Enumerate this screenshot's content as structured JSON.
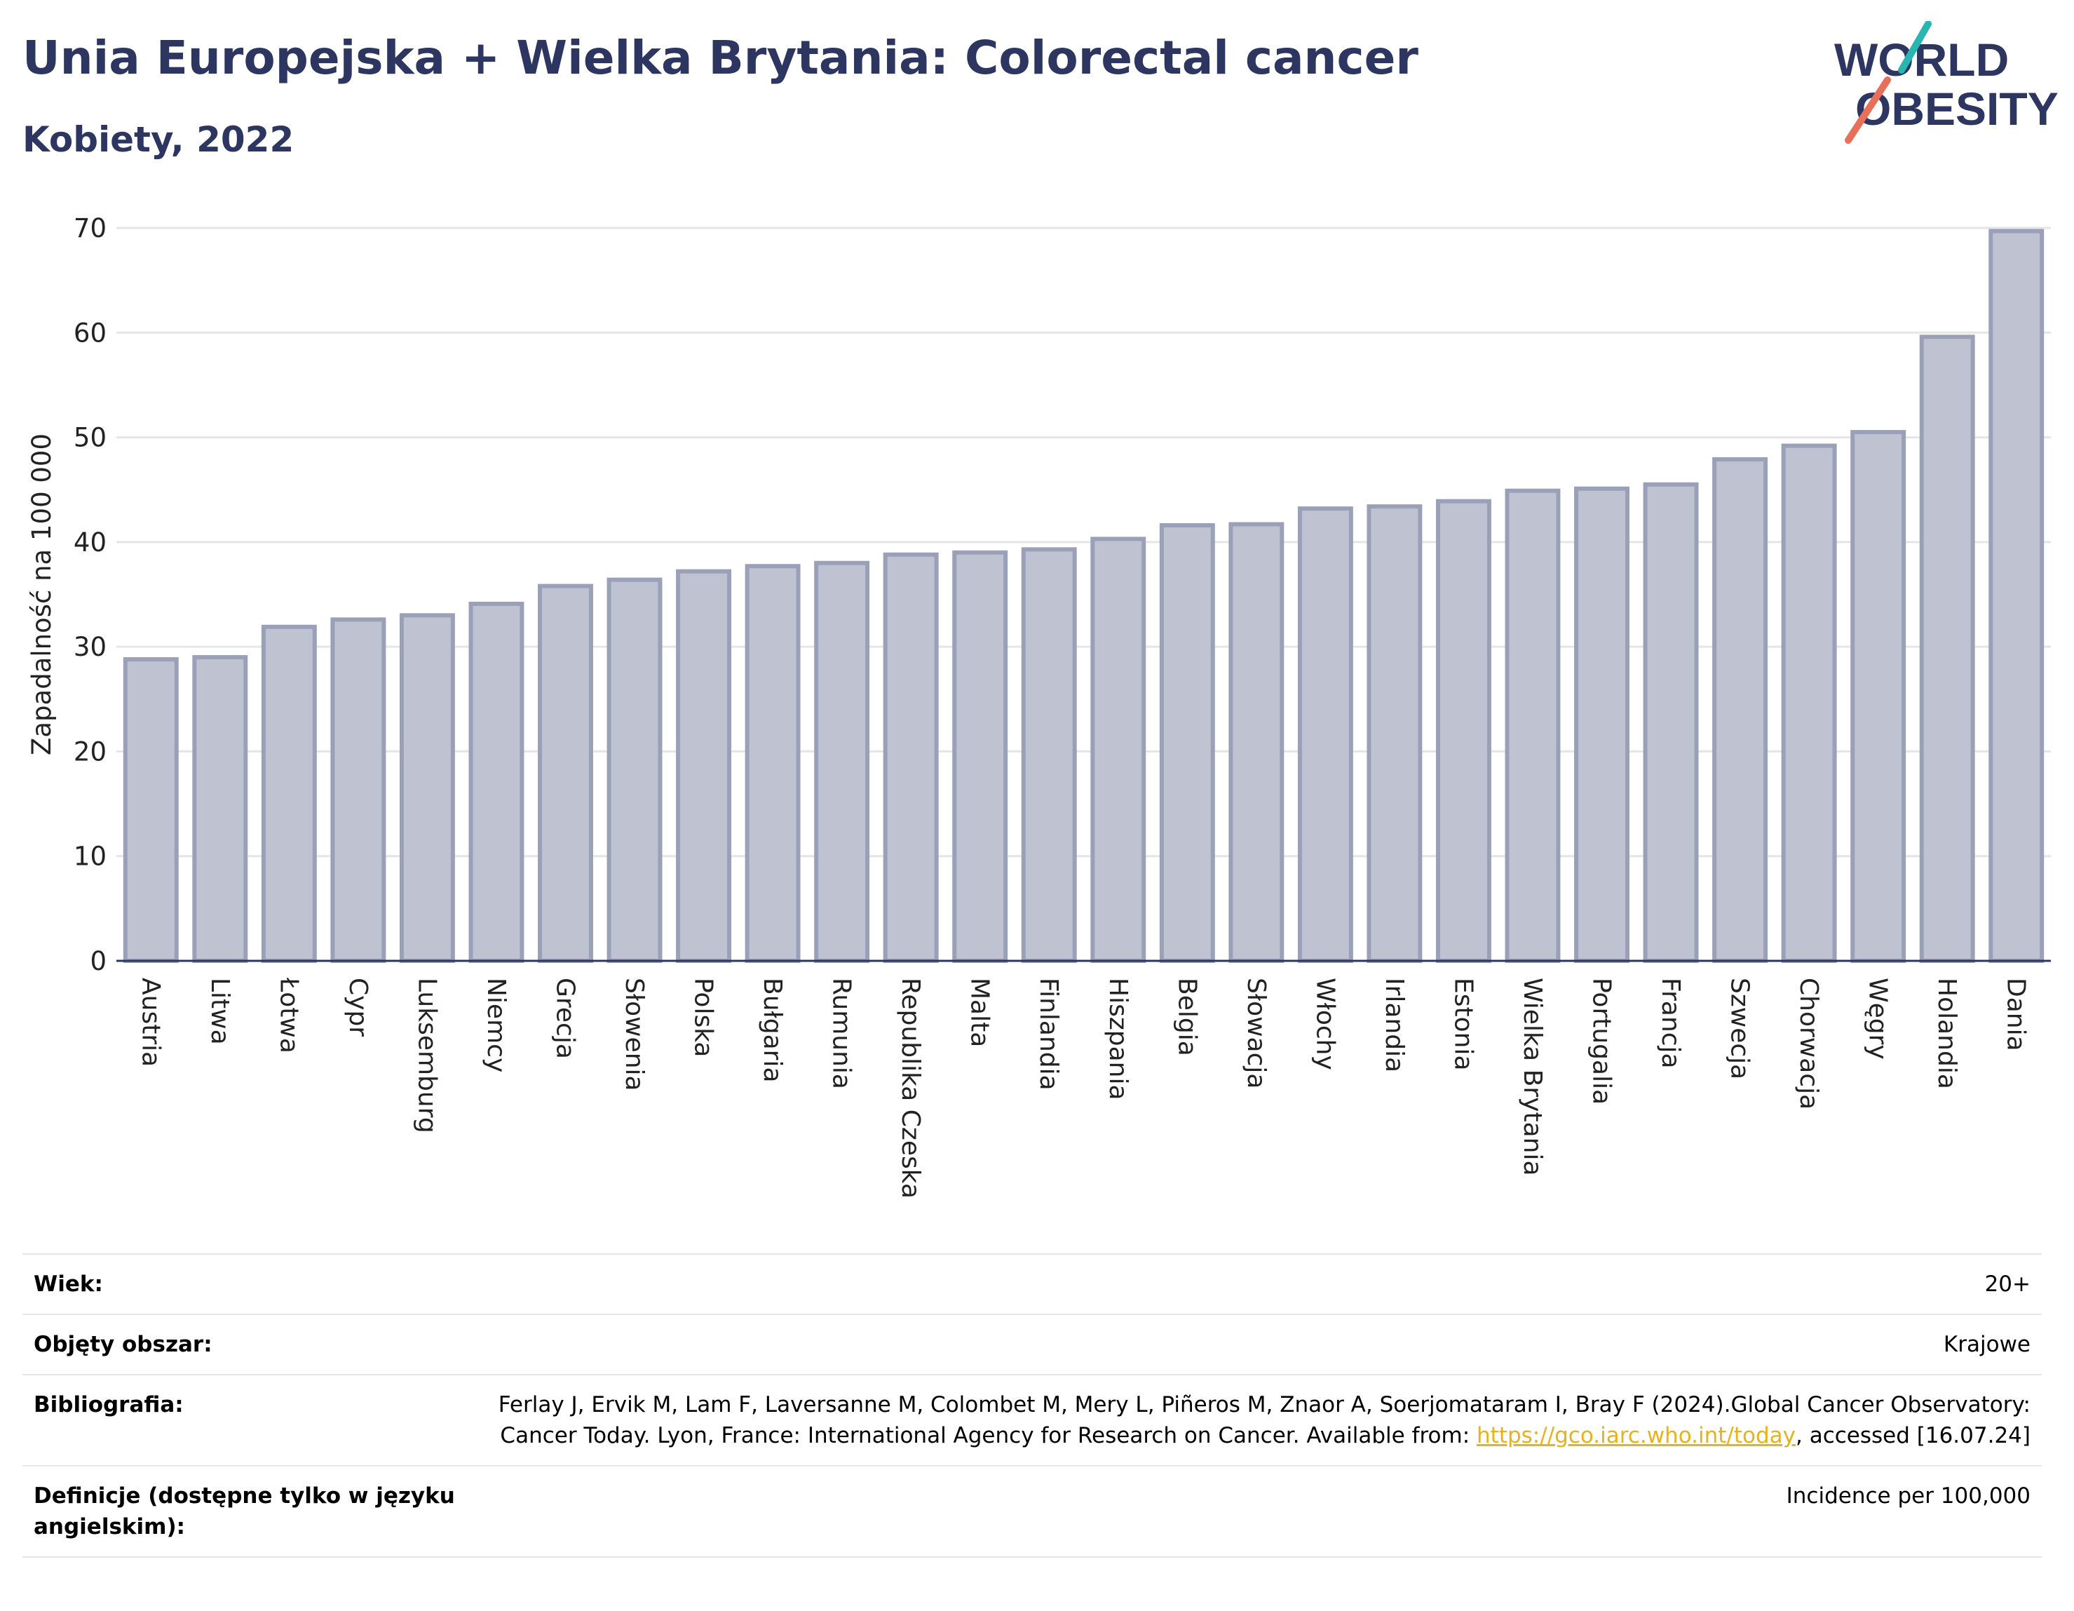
{
  "header": {
    "title": "Unia Europejska + Wielka Brytania: Colorectal cancer",
    "subtitle": "Kobiety, 2022"
  },
  "logo": {
    "line1": "WORLD",
    "line2": "OBESITY",
    "accent_teal": "#2bb5b1",
    "accent_red": "#e8705a"
  },
  "chart_data": {
    "type": "bar",
    "ylabel": "Zapadalność na 100 000",
    "ylim": [
      0,
      70
    ],
    "yticks": [
      0,
      10,
      20,
      30,
      40,
      50,
      60,
      70
    ],
    "grid": true,
    "bar_color": "#bfc3d1",
    "bar_border": "#9aa0b8",
    "categories": [
      "Austria",
      "Litwa",
      "Łotwa",
      "Cypr",
      "Luksemburg",
      "Niemcy",
      "Grecja",
      "Słowenia",
      "Polska",
      "Bułgaria",
      "Rumunia",
      "Republika Czeska",
      "Malta",
      "Finlandia",
      "Hiszpania",
      "Belgia",
      "Słowacja",
      "Włochy",
      "Irlandia",
      "Estonia",
      "Wielka Brytania",
      "Portugalia",
      "Francja",
      "Szwecja",
      "Chorwacja",
      "Węgry",
      "Holandia",
      "Dania"
    ],
    "values": [
      28.8,
      29.0,
      31.9,
      32.6,
      33.0,
      34.1,
      35.8,
      36.4,
      37.2,
      37.7,
      38.0,
      38.8,
      39.0,
      39.3,
      40.3,
      41.6,
      41.7,
      43.2,
      43.4,
      43.9,
      44.9,
      45.1,
      45.5,
      47.9,
      49.2,
      50.5,
      59.6,
      69.7
    ]
  },
  "meta": {
    "age_label": "Wiek:",
    "age_value": "20+",
    "area_label": "Objęty obszar:",
    "area_value": "Krajowe",
    "bib_label": "Bibliografia:",
    "bib_text_1": "Ferlay J, Ervik M, Lam F, Laversanne M, Colombet M, Mery L, Piñeros M, Znaor A, Soerjomataram I, Bray F (2024).Global Cancer Observatory: Cancer Today. Lyon, France: International Agency for Research on Cancer. Available from: ",
    "bib_link": "https://gco.iarc.who.int/today",
    "bib_text_2": ", accessed [16.07.24]",
    "def_label": "Definicje (dostępne tylko w języku angielskim):",
    "def_value": "Incidence per 100,000"
  }
}
